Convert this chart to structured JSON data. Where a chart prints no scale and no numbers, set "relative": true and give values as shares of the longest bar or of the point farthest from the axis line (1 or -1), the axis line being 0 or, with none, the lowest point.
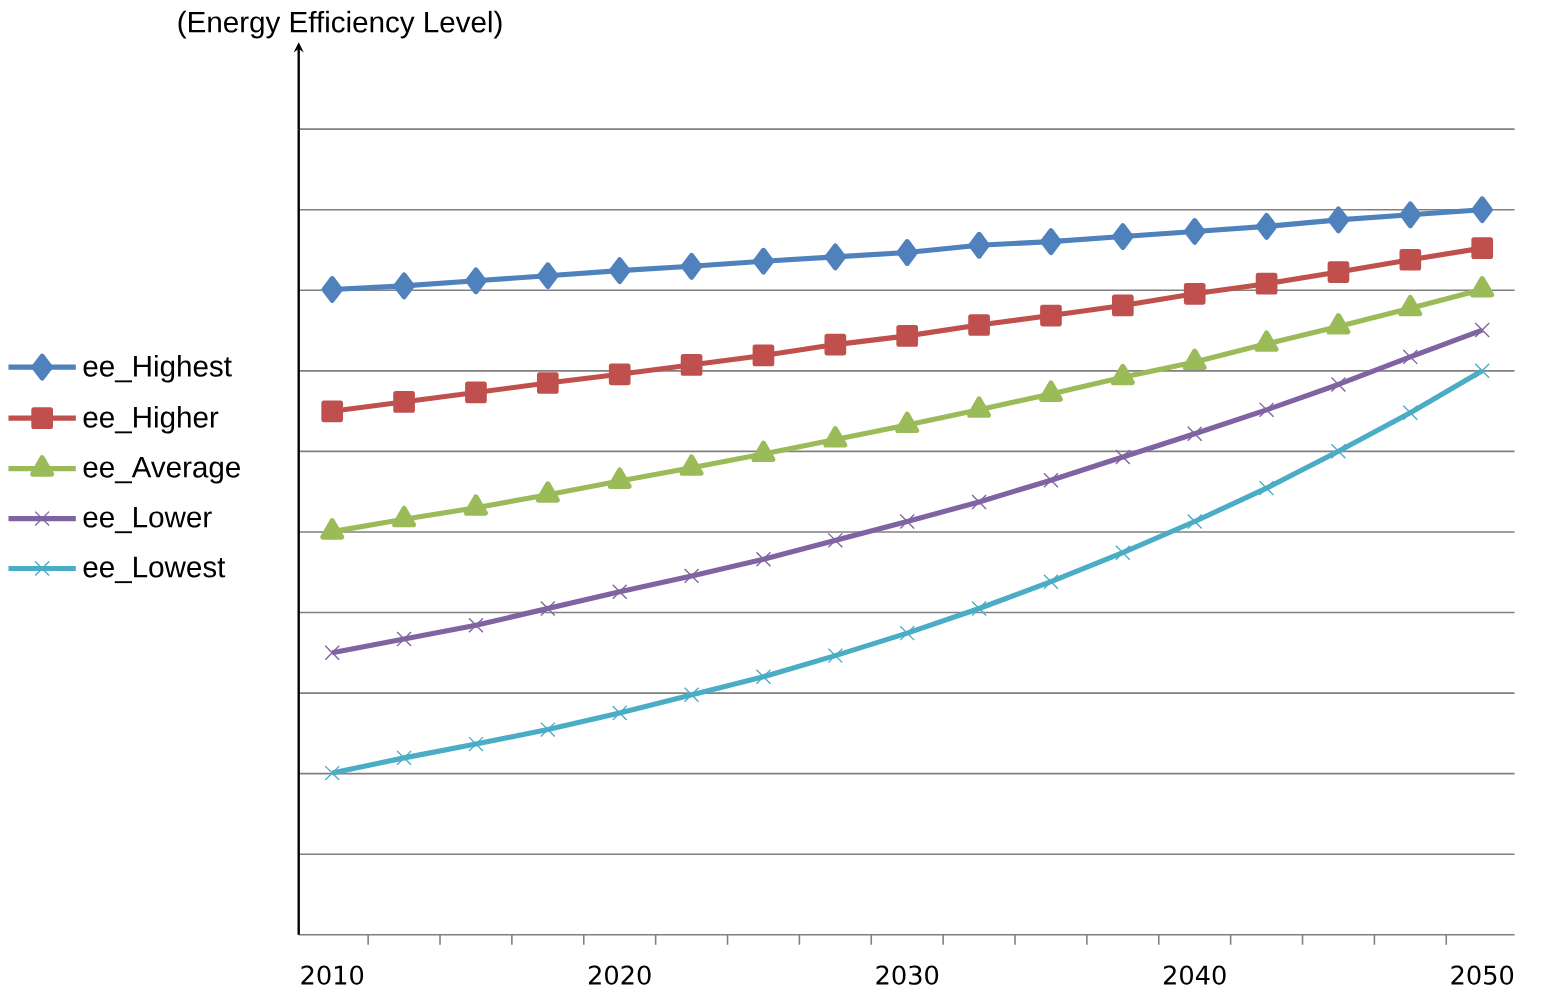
{
  "chart_data": {
    "type": "line",
    "annotations": [
      "(Energy Efficiency Level)"
    ],
    "relative": true,
    "grid": "y",
    "legend": "left",
    "categories": [
      "2010",
      null,
      null,
      null,
      "2020",
      null,
      null,
      null,
      "2030",
      null,
      null,
      null,
      "2040",
      null,
      null,
      null,
      "2050"
    ],
    "series": [
      {
        "name": "ee_Highest",
        "color": "#4f81bd",
        "marker": "diamond",
        "values": [
          0.89,
          0.895,
          0.902,
          0.909,
          0.916,
          0.922,
          0.929,
          0.935,
          0.941,
          0.951,
          0.956,
          0.963,
          0.97,
          0.977,
          0.986,
          0.993,
          1.0
        ]
      },
      {
        "name": "ee_Higher",
        "color": "#c0504d",
        "marker": "square",
        "values": [
          0.722,
          0.735,
          0.748,
          0.761,
          0.773,
          0.786,
          0.799,
          0.814,
          0.826,
          0.841,
          0.854,
          0.868,
          0.884,
          0.898,
          0.914,
          0.931,
          0.947
        ]
      },
      {
        "name": "ee_Average",
        "color": "#9bbb59",
        "marker": "triangle",
        "values": [
          0.556,
          0.573,
          0.589,
          0.607,
          0.626,
          0.644,
          0.663,
          0.683,
          0.703,
          0.724,
          0.746,
          0.769,
          0.79,
          0.815,
          0.839,
          0.864,
          0.89
        ]
      },
      {
        "name": "ee_Lower",
        "color": "#8064a2",
        "marker": "cross",
        "values": [
          0.389,
          0.408,
          0.427,
          0.45,
          0.473,
          0.495,
          0.518,
          0.544,
          0.57,
          0.597,
          0.627,
          0.659,
          0.691,
          0.724,
          0.759,
          0.797,
          0.834
        ]
      },
      {
        "name": "ee_Lowest",
        "color": "#4bacc6",
        "marker": "cross",
        "values": [
          0.223,
          0.244,
          0.263,
          0.283,
          0.306,
          0.331,
          0.356,
          0.385,
          0.416,
          0.45,
          0.487,
          0.527,
          0.57,
          0.616,
          0.667,
          0.72,
          0.778
        ]
      }
    ]
  }
}
